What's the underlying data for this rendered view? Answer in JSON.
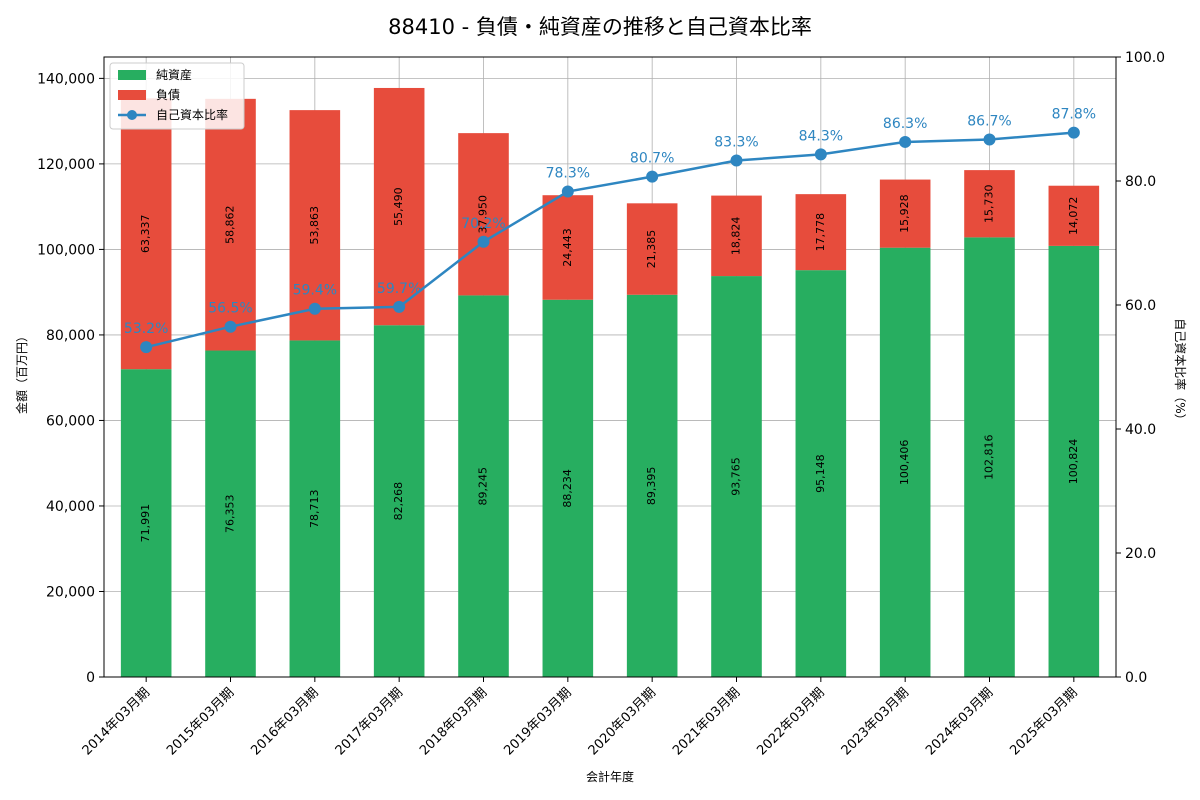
{
  "chart_data": {
    "type": "bar",
    "title": "88410 - 負債・純資産の推移と自己資本比率",
    "xlabel": "会計年度",
    "ylabel": "金額（百万円）",
    "y2label": "自己資本比率（%）",
    "ylim": [
      0,
      145000
    ],
    "y2lim": [
      0,
      100
    ],
    "yticks": [
      "0",
      "20,000",
      "40,000",
      "60,000",
      "80,000",
      "100,000",
      "120,000",
      "140,000"
    ],
    "y2ticks": [
      "0.0",
      "20.0",
      "40.0",
      "60.0",
      "80.0",
      "100.0"
    ],
    "grid": true,
    "legend_position": "upper-left",
    "categories": [
      "2014年03月期",
      "2015年03月期",
      "2016年03月期",
      "2017年03月期",
      "2018年03月期",
      "2019年03月期",
      "2020年03月期",
      "2021年03月期",
      "2022年03月期",
      "2023年03月期",
      "2024年03月期",
      "2025年03月期"
    ],
    "series": [
      {
        "name": "純資産",
        "kind": "bar",
        "color": "#27ae60",
        "values": [
          71991,
          76353,
          78713,
          82268,
          89245,
          88234,
          89395,
          93765,
          95148,
          100406,
          102816,
          100824
        ],
        "labels": [
          "71,991",
          "76,353",
          "78,713",
          "82,268",
          "89,245",
          "88,234",
          "89,395",
          "93,765",
          "95,148",
          "100,406",
          "102,816",
          "100,824"
        ]
      },
      {
        "name": "負債",
        "kind": "bar",
        "color": "#e74c3c",
        "values": [
          63337,
          58862,
          53863,
          55490,
          37950,
          24443,
          21385,
          18824,
          17778,
          15928,
          15730,
          14072
        ],
        "labels": [
          "63,337",
          "58,862",
          "53,863",
          "55,490",
          "37,950",
          "24,443",
          "21,385",
          "18,824",
          "17,778",
          "15,928",
          "15,730",
          "14,072"
        ]
      },
      {
        "name": "自己資本比率",
        "kind": "line",
        "axis": "right",
        "color": "#2e86c1",
        "values": [
          53.2,
          56.5,
          59.4,
          59.7,
          70.2,
          78.3,
          80.7,
          83.3,
          84.3,
          86.3,
          86.7,
          87.8
        ],
        "labels": [
          "53.2%",
          "56.5%",
          "59.4%",
          "59.7%",
          "70.2%",
          "78.3%",
          "80.7%",
          "83.3%",
          "84.3%",
          "86.3%",
          "86.7%",
          "87.8%"
        ]
      }
    ]
  }
}
